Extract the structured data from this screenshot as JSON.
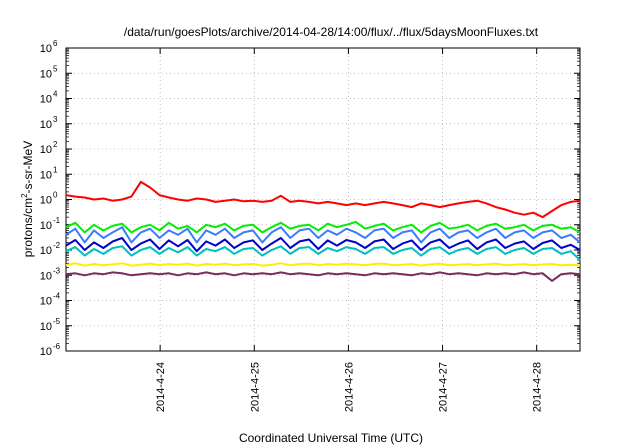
{
  "chart_data": {
    "type": "line",
    "title": "/data/run/goesPlots/archive/2014-04-28/14:00/flux/../flux/5daysMoonFluxes.txt",
    "xlabel": "Coordinated Universal Time (UTC)",
    "ylabel_base": "protons/cm",
    "ylabel_exp": "2",
    "ylabel_rest": "-s-sr-MeV",
    "yscale": "log",
    "ylim": [
      1e-06,
      1000000.0
    ],
    "xlim": [
      "2014-04-23 03:00",
      "2014-04-28 14:00"
    ],
    "grid": true,
    "y_ticks": [
      {
        "value": -6,
        "base": "10",
        "exp": "-6"
      },
      {
        "value": -5,
        "base": "10",
        "exp": "-5"
      },
      {
        "value": -4,
        "base": "10",
        "exp": "-4"
      },
      {
        "value": -3,
        "base": "10",
        "exp": "-3"
      },
      {
        "value": -2,
        "base": "10",
        "exp": "-2"
      },
      {
        "value": -1,
        "base": "10",
        "exp": "-1"
      },
      {
        "value": 0,
        "base": "10",
        "exp": "0"
      },
      {
        "value": 1,
        "base": "10",
        "exp": "1"
      },
      {
        "value": 2,
        "base": "10",
        "exp": "2"
      },
      {
        "value": 3,
        "base": "10",
        "exp": "3"
      },
      {
        "value": 4,
        "base": "10",
        "exp": "4"
      },
      {
        "value": 5,
        "base": "10",
        "exp": "5"
      },
      {
        "value": 6,
        "base": "10",
        "exp": "6"
      }
    ],
    "x_ticks": [
      {
        "day": 1,
        "label": "2014-4-24"
      },
      {
        "day": 2,
        "label": "2014-4-25"
      },
      {
        "day": 3,
        "label": "2014-4-26"
      },
      {
        "day": 4,
        "label": "2014-4-27"
      },
      {
        "day": 5,
        "label": "2014-4-28"
      }
    ],
    "x_start_day": 0,
    "x_end_day": 5.46,
    "series": [
      {
        "color": "#ff0000",
        "values": [
          1.5,
          1.3,
          1.2,
          1.0,
          1.1,
          0.9,
          1.0,
          1.3,
          5.0,
          3.0,
          1.5,
          1.2,
          1.0,
          0.9,
          1.1,
          1.0,
          0.8,
          0.9,
          1.0,
          0.85,
          0.9,
          0.8,
          0.9,
          1.4,
          0.8,
          0.9,
          0.8,
          0.7,
          0.8,
          0.7,
          0.6,
          0.7,
          0.6,
          0.7,
          0.8,
          0.7,
          0.6,
          0.5,
          0.7,
          0.6,
          0.5,
          0.6,
          0.7,
          0.8,
          0.9,
          0.7,
          0.5,
          0.4,
          0.3,
          0.25,
          0.3,
          0.2,
          0.35,
          0.6,
          0.8,
          0.9
        ]
      },
      {
        "color": "#00ee00",
        "values": [
          0.08,
          0.12,
          0.05,
          0.1,
          0.06,
          0.09,
          0.11,
          0.05,
          0.08,
          0.1,
          0.06,
          0.12,
          0.07,
          0.09,
          0.05,
          0.1,
          0.08,
          0.11,
          0.06,
          0.09,
          0.1,
          0.05,
          0.08,
          0.12,
          0.07,
          0.09,
          0.1,
          0.06,
          0.11,
          0.08,
          0.1,
          0.13,
          0.07,
          0.09,
          0.11,
          0.06,
          0.08,
          0.1,
          0.05,
          0.09,
          0.12,
          0.07,
          0.08,
          0.1,
          0.06,
          0.09,
          0.11,
          0.07,
          0.08,
          0.1,
          0.06,
          0.09,
          0.1,
          0.07,
          0.08,
          0.05
        ]
      },
      {
        "color": "#3a7cff",
        "values": [
          0.04,
          0.07,
          0.02,
          0.06,
          0.03,
          0.05,
          0.08,
          0.02,
          0.05,
          0.07,
          0.03,
          0.06,
          0.04,
          0.07,
          0.02,
          0.06,
          0.04,
          0.07,
          0.03,
          0.05,
          0.06,
          0.02,
          0.05,
          0.08,
          0.03,
          0.06,
          0.07,
          0.03,
          0.06,
          0.04,
          0.07,
          0.05,
          0.03,
          0.06,
          0.07,
          0.03,
          0.05,
          0.06,
          0.02,
          0.05,
          0.07,
          0.03,
          0.05,
          0.06,
          0.03,
          0.05,
          0.07,
          0.03,
          0.05,
          0.06,
          0.03,
          0.05,
          0.06,
          0.03,
          0.04,
          0.02
        ]
      },
      {
        "color": "#0000cc",
        "values": [
          0.015,
          0.025,
          0.01,
          0.02,
          0.012,
          0.022,
          0.03,
          0.01,
          0.018,
          0.026,
          0.011,
          0.024,
          0.014,
          0.025,
          0.009,
          0.022,
          0.015,
          0.026,
          0.012,
          0.02,
          0.024,
          0.01,
          0.018,
          0.03,
          0.012,
          0.022,
          0.026,
          0.011,
          0.024,
          0.015,
          0.025,
          0.02,
          0.012,
          0.022,
          0.026,
          0.011,
          0.018,
          0.024,
          0.01,
          0.02,
          0.026,
          0.012,
          0.018,
          0.024,
          0.011,
          0.02,
          0.026,
          0.012,
          0.018,
          0.022,
          0.011,
          0.019,
          0.024,
          0.012,
          0.016,
          0.01
        ]
      },
      {
        "color": "#00bfbf",
        "values": [
          0.009,
          0.013,
          0.006,
          0.011,
          0.007,
          0.012,
          0.014,
          0.006,
          0.01,
          0.013,
          0.007,
          0.012,
          0.008,
          0.013,
          0.006,
          0.011,
          0.009,
          0.013,
          0.007,
          0.011,
          0.012,
          0.006,
          0.01,
          0.014,
          0.007,
          0.012,
          0.013,
          0.007,
          0.012,
          0.009,
          0.013,
          0.011,
          0.007,
          0.012,
          0.013,
          0.007,
          0.01,
          0.012,
          0.006,
          0.011,
          0.013,
          0.007,
          0.01,
          0.012,
          0.007,
          0.011,
          0.013,
          0.007,
          0.01,
          0.012,
          0.007,
          0.011,
          0.012,
          0.007,
          0.009,
          0.004
        ]
      },
      {
        "color": "#ffee00",
        "values": [
          0.0025,
          0.003,
          0.0024,
          0.0028,
          0.0025,
          0.0027,
          0.003,
          0.0024,
          0.0026,
          0.0029,
          0.0025,
          0.0028,
          0.0026,
          0.0029,
          0.0024,
          0.0028,
          0.0026,
          0.0029,
          0.0025,
          0.0027,
          0.0028,
          0.0024,
          0.0026,
          0.003,
          0.0025,
          0.0028,
          0.0029,
          0.0025,
          0.0028,
          0.0026,
          0.0029,
          0.0027,
          0.0025,
          0.0028,
          0.0029,
          0.0025,
          0.0026,
          0.0028,
          0.0024,
          0.0027,
          0.0029,
          0.0025,
          0.0026,
          0.0028,
          0.0025,
          0.0027,
          0.0029,
          0.0025,
          0.0026,
          0.0028,
          0.0025,
          0.0027,
          0.0028,
          0.0025,
          0.0026,
          0.0025
        ]
      },
      {
        "color": "#7a2a5a",
        "values": [
          0.0011,
          0.0012,
          0.001,
          0.0012,
          0.0011,
          0.0013,
          0.0012,
          0.001,
          0.0011,
          0.0012,
          0.0011,
          0.0012,
          0.001,
          0.0012,
          0.0011,
          0.0013,
          0.0011,
          0.0012,
          0.001,
          0.0012,
          0.0011,
          0.0012,
          0.0011,
          0.0013,
          0.0011,
          0.0012,
          0.0011,
          0.001,
          0.0012,
          0.0011,
          0.0012,
          0.0011,
          0.001,
          0.0012,
          0.0011,
          0.0012,
          0.0011,
          0.001,
          0.0012,
          0.0011,
          0.0013,
          0.0011,
          0.0012,
          0.0011,
          0.001,
          0.0012,
          0.0011,
          0.0012,
          0.0011,
          0.0013,
          0.0011,
          0.0012,
          0.0006,
          0.0011,
          0.0012,
          0.0011
        ]
      }
    ]
  }
}
